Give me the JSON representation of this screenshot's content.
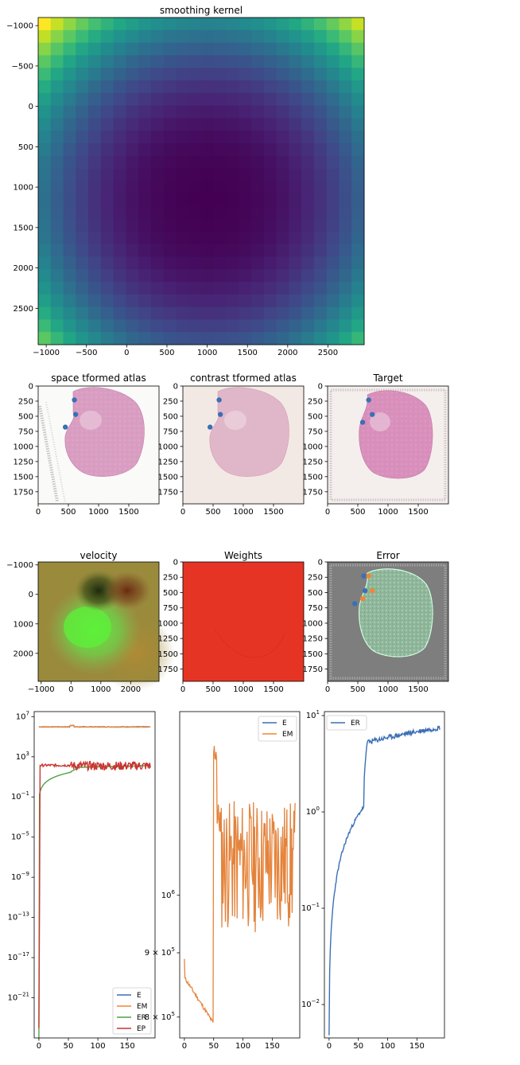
{
  "chart_data": [
    {
      "type": "heatmap",
      "panel": "kernel",
      "title": "smoothing kernel",
      "xticks": [
        -1000,
        -500,
        0,
        500,
        1000,
        1500,
        2000,
        2500
      ],
      "yticks": [
        -1000,
        -500,
        0,
        500,
        1000,
        1500,
        2000,
        2500
      ],
      "xlim": [
        -1100,
        2950
      ],
      "ylim": [
        2950,
        -1100
      ],
      "grid_size": 26,
      "colormap": "viridis"
    },
    {
      "type": "image",
      "panel": "space",
      "title": "space tformed atlas",
      "xticks": [
        0,
        500,
        1000,
        1500
      ],
      "yticks": [
        0,
        250,
        500,
        750,
        1000,
        1250,
        1500,
        1750
      ],
      "xlim": [
        0,
        2000
      ],
      "ylim": [
        1950,
        0
      ],
      "points": [
        {
          "x": 600,
          "y": 230,
          "color": "#3b6fb6"
        },
        {
          "x": 620,
          "y": 470,
          "color": "#3b6fb6"
        },
        {
          "x": 450,
          "y": 680,
          "color": "#3b6fb6"
        }
      ]
    },
    {
      "type": "image",
      "panel": "contrast",
      "title": "contrast tformed atlas",
      "xticks": [
        0,
        500,
        1000,
        1500
      ],
      "yticks": [
        0,
        250,
        500,
        750,
        1000,
        1250,
        1500,
        1750
      ],
      "xlim": [
        0,
        2000
      ],
      "ylim": [
        1950,
        0
      ],
      "points": [
        {
          "x": 600,
          "y": 230,
          "color": "#3b6fb6"
        },
        {
          "x": 620,
          "y": 470,
          "color": "#3b6fb6"
        },
        {
          "x": 450,
          "y": 680,
          "color": "#3b6fb6"
        }
      ]
    },
    {
      "type": "image",
      "panel": "target",
      "title": "Target",
      "xticks": [
        0,
        500,
        1000,
        1500
      ],
      "yticks": [
        0,
        250,
        500,
        750,
        1000,
        1250,
        1500,
        1750
      ],
      "xlim": [
        0,
        2000
      ],
      "ylim": [
        1950,
        0
      ],
      "points": [
        {
          "x": 680,
          "y": 230,
          "color": "#3b6fb6"
        },
        {
          "x": 740,
          "y": 470,
          "color": "#3b6fb6"
        },
        {
          "x": 580,
          "y": 600,
          "color": "#3b6fb6"
        }
      ]
    },
    {
      "type": "heatmap",
      "panel": "velocity",
      "title": "velocity",
      "xticks": [
        -1000,
        0,
        1000,
        2000
      ],
      "yticks": [
        -1000,
        0,
        1000,
        2000
      ],
      "xlim": [
        -1100,
        2950
      ],
      "ylim": [
        2950,
        -1100
      ]
    },
    {
      "type": "image",
      "panel": "weights",
      "title": "Weights",
      "xticks": [
        0,
        500,
        1000,
        1500
      ],
      "yticks": [
        0,
        250,
        500,
        750,
        1000,
        1250,
        1500,
        1750
      ],
      "xlim": [
        0,
        2000
      ],
      "ylim": [
        1950,
        0
      ],
      "fill_color": "#e63424"
    },
    {
      "type": "image",
      "panel": "error",
      "title": "Error",
      "xticks": [
        0,
        500,
        1000,
        1500
      ],
      "yticks": [
        0,
        250,
        500,
        750,
        1000,
        1250,
        1500,
        1750
      ],
      "xlim": [
        0,
        2000
      ],
      "ylim": [
        1950,
        0
      ],
      "points": [
        {
          "x": 600,
          "y": 230,
          "color": "#3b6fb6"
        },
        {
          "x": 620,
          "y": 470,
          "color": "#3b6fb6"
        },
        {
          "x": 450,
          "y": 680,
          "color": "#3b6fb6"
        },
        {
          "x": 680,
          "y": 230,
          "color": "#ef8636"
        },
        {
          "x": 740,
          "y": 470,
          "color": "#ef8636"
        },
        {
          "x": 580,
          "y": 600,
          "color": "#ef8636"
        }
      ]
    },
    {
      "type": "line",
      "panel": "energy",
      "yscale": "log",
      "xlim": [
        -8,
        197
      ],
      "ylim_exp": [
        -25,
        7.5
      ],
      "xticks": [
        0,
        50,
        100,
        150
      ],
      "yticks": [
        "10^7",
        "10^3",
        "10^-1",
        "10^-5",
        "10^-9",
        "10^-13",
        "10^-17",
        "10^-21"
      ],
      "legend_position": "lower right",
      "series": [
        {
          "name": "E",
          "color": "#3b6fb6"
        },
        {
          "name": "EM",
          "color": "#ef8636"
        },
        {
          "name": "ER",
          "color": "#4fa046"
        },
        {
          "name": "EP",
          "color": "#c93631"
        }
      ]
    },
    {
      "type": "line",
      "panel": "matching",
      "yscale": "log",
      "xlim": [
        -8,
        197
      ],
      "ylim": [
        770000,
        1400000
      ],
      "xticks": [
        0,
        50,
        100,
        150
      ],
      "yticks": [
        {
          "value": 800000,
          "label": "8 × 10^5"
        },
        {
          "value": 900000,
          "label": "9 × 10^5"
        },
        {
          "value": 1000000,
          "label": "10^6"
        }
      ],
      "legend_position": "upper right",
      "series": [
        {
          "name": "E",
          "color": "#3b6fb6"
        },
        {
          "name": "EM",
          "color": "#ef8636"
        }
      ]
    },
    {
      "type": "line",
      "panel": "regularization",
      "yscale": "log",
      "xlim": [
        -8,
        197
      ],
      "ylim": [
        0.0045,
        11
      ],
      "xticks": [
        0,
        50,
        100,
        150
      ],
      "yticks": [
        {
          "value": 0.01,
          "label": "10^-2"
        },
        {
          "value": 0.1,
          "label": "10^-1"
        },
        {
          "value": 1,
          "label": "10^0"
        },
        {
          "value": 10,
          "label": "10^1"
        }
      ],
      "legend_position": "upper left",
      "series": [
        {
          "name": "ER",
          "color": "#3b6fb6"
        }
      ]
    }
  ]
}
